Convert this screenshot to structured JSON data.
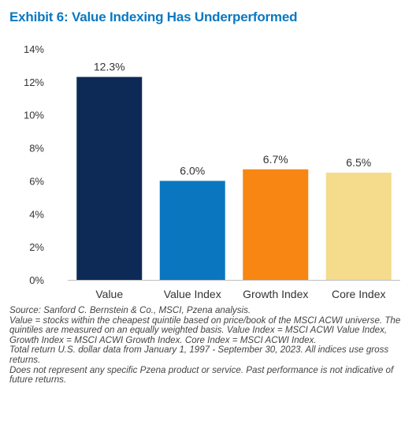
{
  "title": "Exhibit 6: Value Indexing Has Underperformed",
  "chart_data": {
    "type": "bar",
    "categories": [
      "Value",
      "Value Index",
      "Growth Index",
      "Core Index"
    ],
    "values": [
      12.3,
      6.0,
      6.7,
      6.5
    ],
    "value_labels": [
      "12.3%",
      "6.0%",
      "6.7%",
      "6.5%"
    ],
    "colors": [
      "#0d2a56",
      "#0a76c0",
      "#f78613",
      "#f4dc8c"
    ],
    "xlabel": "",
    "ylabel": "",
    "ylim": [
      0,
      14
    ],
    "yticks": [
      0,
      2,
      4,
      6,
      8,
      10,
      12,
      14
    ],
    "ytick_labels": [
      "0%",
      "2%",
      "4%",
      "6%",
      "8%",
      "10%",
      "12%",
      "14%"
    ],
    "grid": false,
    "legend": "none"
  },
  "footnotes": [
    "Source: Sanford C. Bernstein & Co., MSCI, Pzena analysis.",
    "Value = stocks within the cheapest quintile based on price/book of the MSCI ACWI universe. The quintiles are measured on an equally weighted basis. Value Index = MSCI ACWI Value Index, Growth Index = MSCI ACWI Growth Index. Core Index = MSCI ACWI Index.",
    "Total return U.S. dollar data from January 1, 1997 - September 30, 2023.  All indices use gross returns.",
    "Does not represent any specific Pzena product or service. Past performance is not indicative of future returns."
  ]
}
